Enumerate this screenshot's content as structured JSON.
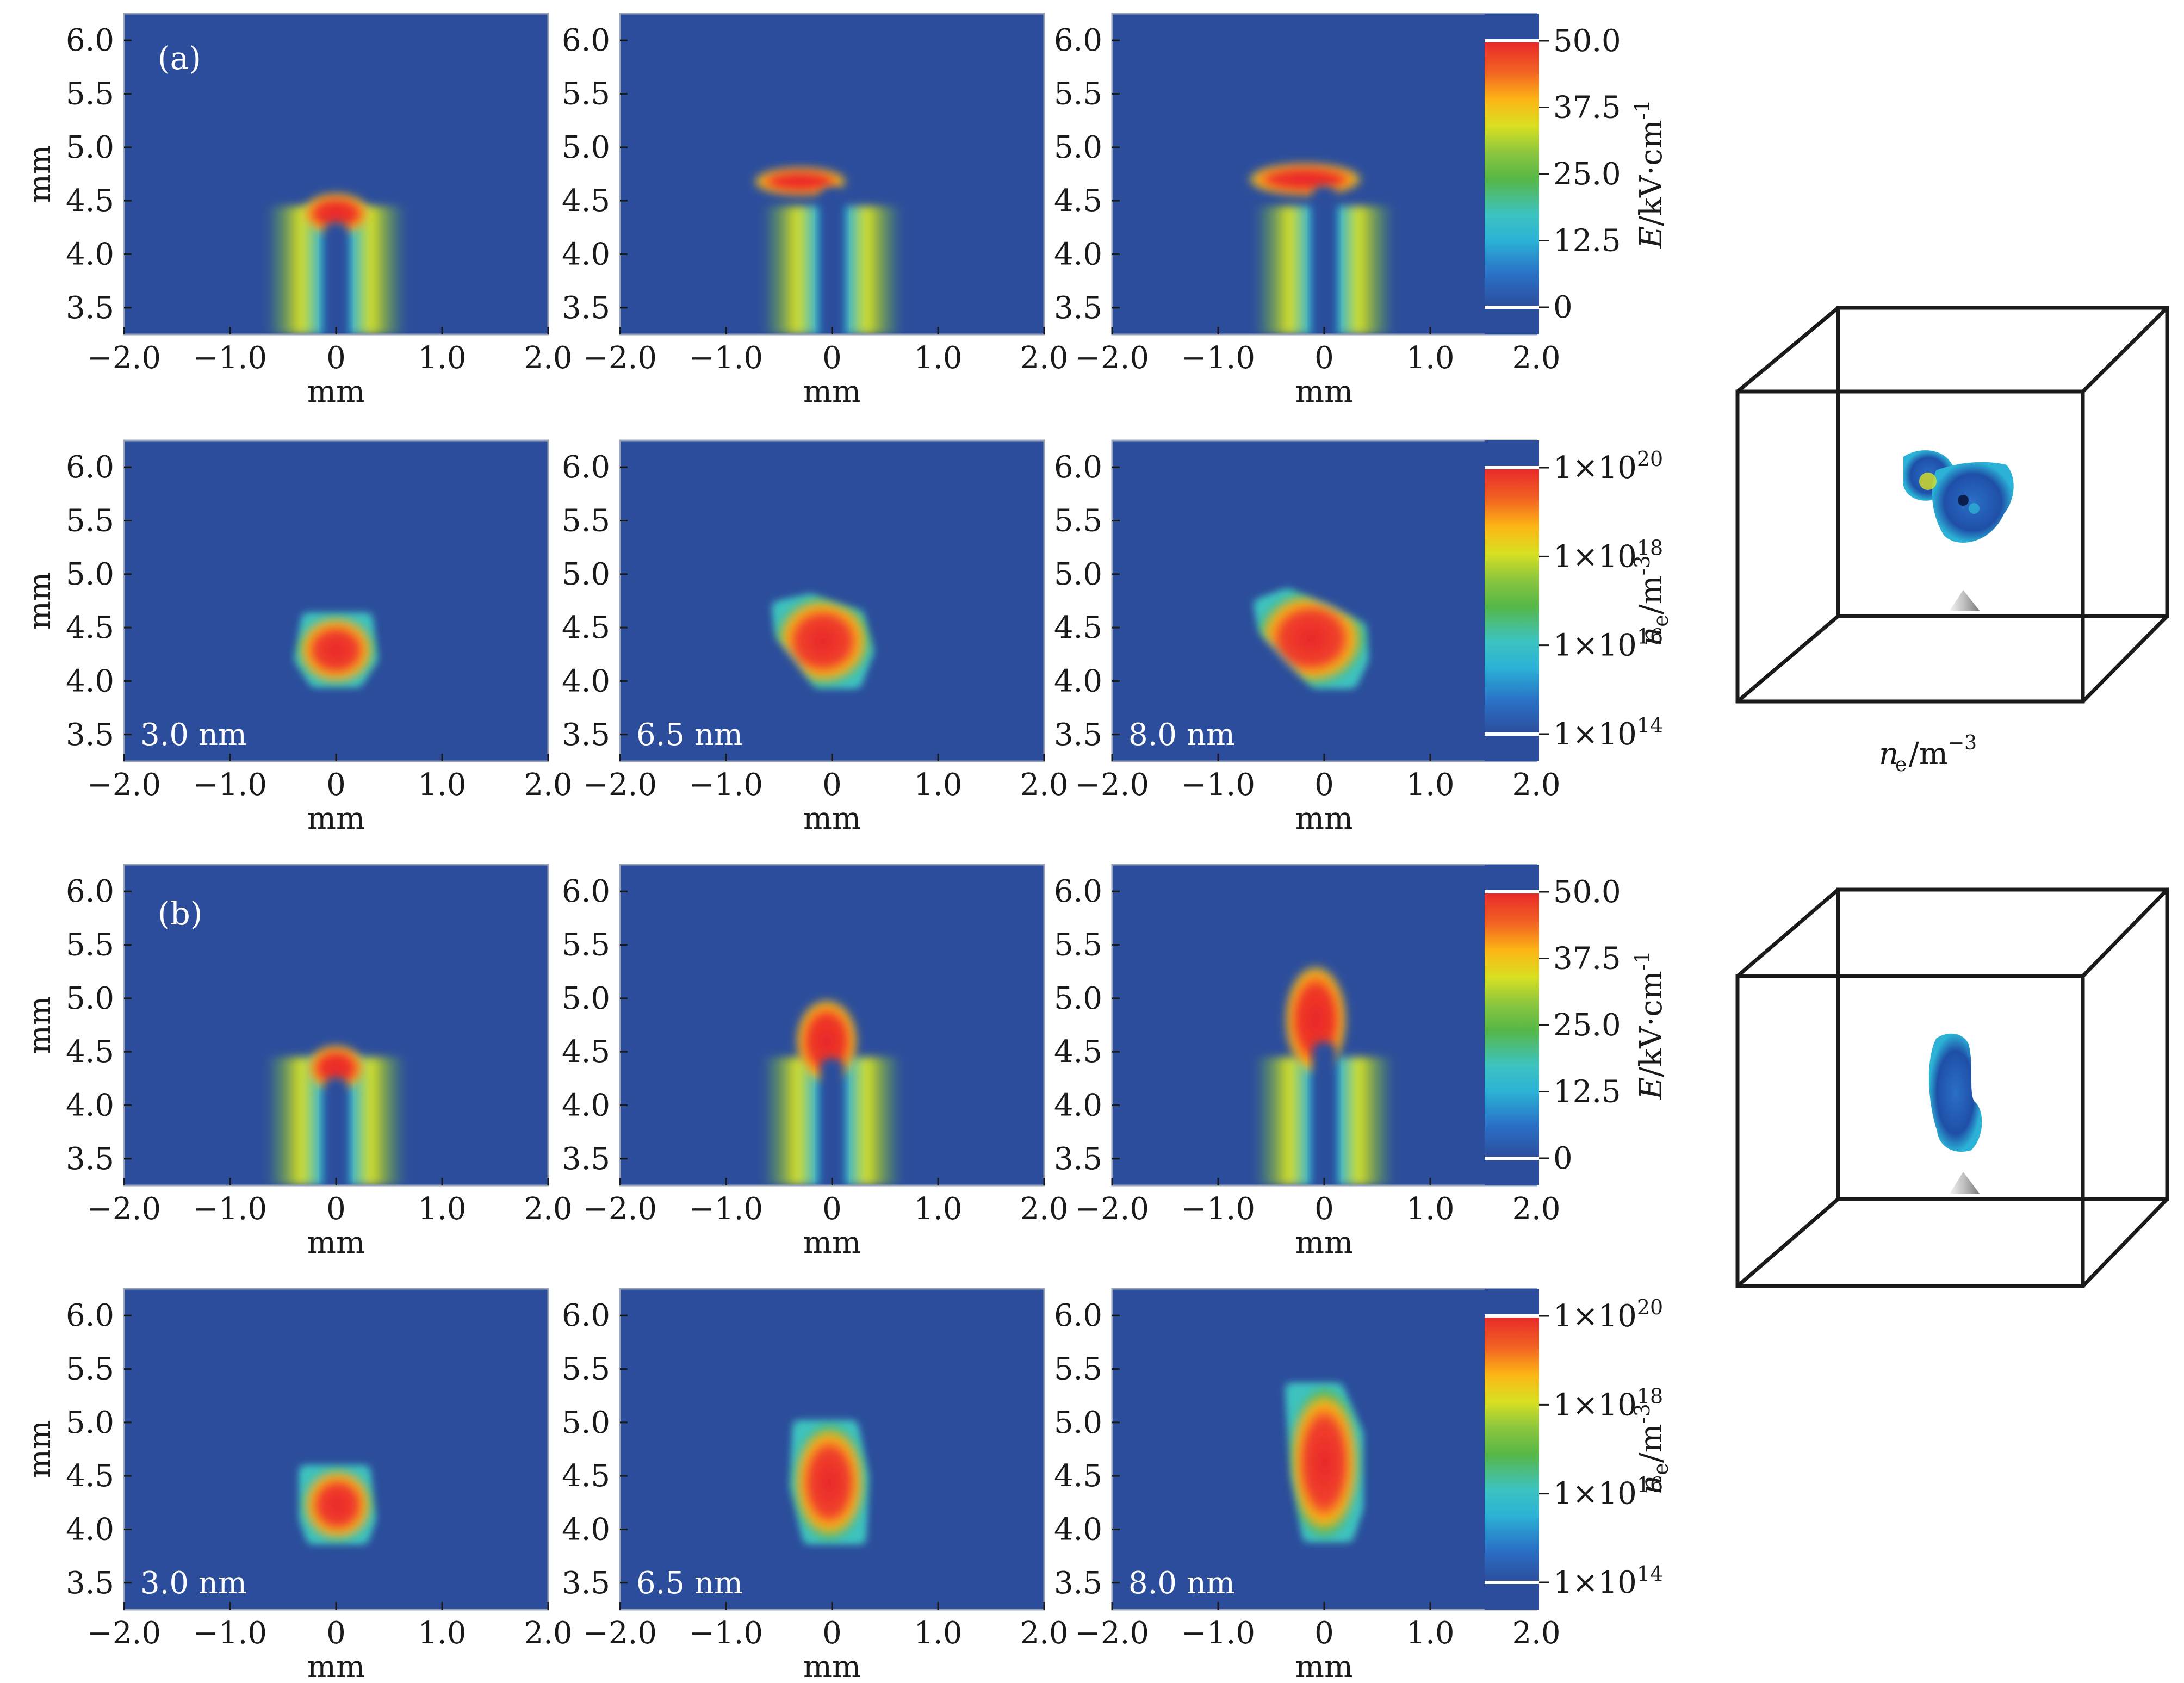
{
  "figure": {
    "x_axis_label": "mm",
    "y_axis_label": "mm",
    "x_ticks": [
      "−2.0",
      "−1.0",
      "0",
      "1.0",
      "2.0"
    ],
    "x_tick_values": [
      -2.0,
      -1.0,
      0,
      1.0,
      2.0
    ],
    "y_ticks": [
      "3.5",
      "4.0",
      "4.5",
      "5.0",
      "5.5",
      "6.0"
    ],
    "y_tick_values": [
      3.5,
      4.0,
      4.5,
      5.0,
      5.5,
      6.0
    ],
    "cube_caption": "n_e/m^-3",
    "colormap": [
      "#2c4d9c",
      "#2a6fc6",
      "#2bb2d6",
      "#3dc3c0",
      "#56b747",
      "#8cc63e",
      "#d9e021",
      "#fdb515",
      "#f26522",
      "#e8262b"
    ]
  },
  "chart_data": [
    {
      "panel_label": "(a)",
      "field_colorbar": {
        "quantity": "E/kV·cm^-1",
        "ticks": [
          "50.0",
          "37.5",
          "25.0",
          "12.5",
          "0"
        ],
        "range": [
          0,
          50.0
        ]
      },
      "density_colorbar": {
        "quantity": "n_e/m^-3",
        "ticks": [
          "1×10^20",
          "1×10^18",
          "1×10^16",
          "1×10^14"
        ],
        "range": [
          100000000000000.0,
          1e+20
        ],
        "scale": "log"
      },
      "type": "heatmap",
      "xlim": [
        -2.0,
        2.0
      ],
      "ylim": [
        3.25,
        6.25
      ],
      "frames": [
        {
          "time_label": "3.0 nm",
          "field_head": {
            "x": 0.0,
            "y": 4.38,
            "rx": 0.33,
            "ry": 0.2
          },
          "field_halo_top_mm": 5.1,
          "density_blob": [
            [
              -0.3,
              4.62
            ],
            [
              0.32,
              4.62
            ],
            [
              0.38,
              4.2
            ],
            [
              0.22,
              3.96
            ],
            [
              -0.22,
              3.96
            ],
            [
              -0.38,
              4.2
            ]
          ]
        },
        {
          "time_label": "6.5 nm",
          "field_head": {
            "x": -0.3,
            "y": 4.68,
            "rx": 0.45,
            "ry": 0.14
          },
          "field_halo_top_mm": 5.45,
          "density_blob": [
            [
              -0.55,
              4.72
            ],
            [
              -0.2,
              4.8
            ],
            [
              0.28,
              4.64
            ],
            [
              0.38,
              4.28
            ],
            [
              0.25,
              3.95
            ],
            [
              -0.15,
              3.95
            ],
            [
              -0.35,
              4.2
            ],
            [
              -0.52,
              4.42
            ]
          ]
        },
        {
          "time_label": "8.0 nm",
          "field_head": {
            "x": -0.18,
            "y": 4.7,
            "rx": 0.55,
            "ry": 0.16
          },
          "field_halo_top_mm": 5.55,
          "density_blob": [
            [
              -0.65,
              4.74
            ],
            [
              -0.35,
              4.85
            ],
            [
              0.05,
              4.7
            ],
            [
              0.38,
              4.52
            ],
            [
              0.4,
              4.2
            ],
            [
              0.28,
              3.95
            ],
            [
              -0.1,
              3.95
            ],
            [
              -0.35,
              4.18
            ],
            [
              -0.6,
              4.46
            ]
          ]
        }
      ]
    },
    {
      "panel_label": "(b)",
      "field_colorbar": {
        "quantity": "E/kV·cm^-1",
        "ticks": [
          "50.0",
          "37.5",
          "25.0",
          "12.5",
          "0"
        ],
        "range": [
          0,
          50.0
        ]
      },
      "density_colorbar": {
        "quantity": "n_e/m^-3",
        "ticks": [
          "1×10^20",
          "1×10^18",
          "1×10^16",
          "1×10^14"
        ],
        "range": [
          100000000000000.0,
          1e+20
        ],
        "scale": "log"
      },
      "type": "heatmap",
      "xlim": [
        -2.0,
        2.0
      ],
      "ylim": [
        3.25,
        6.25
      ],
      "frames": [
        {
          "time_label": "3.0 nm",
          "field_head": {
            "x": 0.0,
            "y": 4.35,
            "rx": 0.28,
            "ry": 0.22
          },
          "field_halo_top_mm": 5.25,
          "density_blob": [
            [
              -0.33,
              4.58
            ],
            [
              0.3,
              4.58
            ],
            [
              0.36,
              4.1
            ],
            [
              0.28,
              3.88
            ],
            [
              -0.25,
              3.88
            ],
            [
              -0.33,
              4.1
            ]
          ]
        },
        {
          "time_label": "6.5 nm",
          "field_head": {
            "x": -0.05,
            "y": 4.6,
            "rx": 0.3,
            "ry": 0.4
          },
          "field_halo_top_mm": 5.7,
          "density_blob": [
            [
              -0.35,
              5.0
            ],
            [
              0.22,
              5.0
            ],
            [
              0.33,
              4.5
            ],
            [
              0.3,
              3.88
            ],
            [
              -0.25,
              3.88
            ],
            [
              -0.38,
              4.4
            ]
          ]
        },
        {
          "time_label": "8.0 nm",
          "field_head": {
            "x": -0.08,
            "y": 4.8,
            "rx": 0.3,
            "ry": 0.52
          },
          "field_halo_top_mm": 5.85,
          "density_blob": [
            [
              -0.35,
              5.35
            ],
            [
              0.15,
              5.35
            ],
            [
              0.35,
              4.9
            ],
            [
              0.35,
              4.2
            ],
            [
              0.25,
              3.9
            ],
            [
              -0.18,
              3.9
            ],
            [
              -0.3,
              4.5
            ]
          ]
        }
      ]
    }
  ]
}
